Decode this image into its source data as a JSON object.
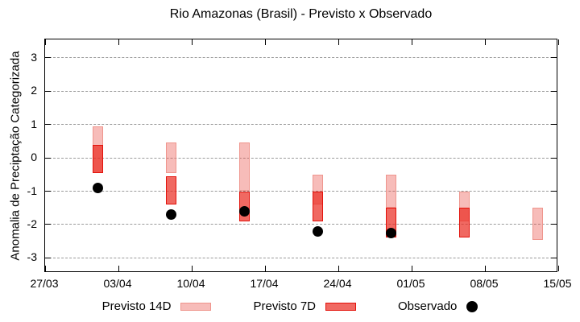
{
  "title": "Rio Amazonas (Brasil) - Previsto x Observado",
  "y_axis": {
    "label": "Anomalia de Preciptação Categorizada",
    "ticks": [
      3,
      2,
      1,
      0,
      -1,
      -2,
      -3
    ],
    "min": -3.45,
    "max": 3.55
  },
  "x_axis": {
    "tick_labels": [
      "27/03",
      "03/04",
      "10/04",
      "17/04",
      "24/04",
      "01/05",
      "08/05",
      "15/05"
    ],
    "tick_days": [
      0,
      7,
      14,
      21,
      28,
      35,
      42,
      49
    ],
    "span_days": 49
  },
  "legend": [
    {
      "label": "Previsto 14D",
      "type": "box"
    },
    {
      "label": "Previsto 7D",
      "type": "box"
    },
    {
      "label": "Observado",
      "type": "dot"
    }
  ],
  "colors": {
    "previsto14_fill": "rgba(235,80,70,0.38)",
    "previsto14_border": "#ef958d",
    "previsto7_fill": "rgba(233,42,32,0.70)",
    "previsto7_border": "#e3120b",
    "observado": "#000000",
    "grid": "#9a9a9a",
    "axis": "#000000"
  },
  "chart_data": {
    "type": "bar",
    "variant": "floating_range_bars_with_scatter",
    "title": "Rio Amazonas (Brasil) - Previsto x Observado",
    "xlabel": "",
    "ylabel": "Anomalia de Preciptação Categorizada",
    "ylim": [
      -3.45,
      3.55
    ],
    "grid": "horizontal-dashed",
    "legend_position": "bottom-center",
    "categories": [
      "01/04",
      "08/04",
      "15/04",
      "22/04",
      "29/04",
      "06/05",
      "13/05"
    ],
    "day_offsets": [
      5,
      12,
      19,
      26,
      33,
      40,
      47
    ],
    "series": [
      {
        "name": "Previsto 14D",
        "kind": "range",
        "ranges": [
          [
            -0.45,
            0.95
          ],
          [
            -0.45,
            0.45
          ],
          [
            -1.0,
            0.45
          ],
          [
            -1.4,
            -0.5
          ],
          [
            -1.5,
            -0.5
          ],
          [
            -1.9,
            -1.0
          ],
          [
            -2.45,
            -1.5
          ]
        ]
      },
      {
        "name": "Previsto 7D",
        "kind": "range",
        "ranges": [
          [
            -0.45,
            0.4
          ],
          [
            -1.4,
            -0.55
          ],
          [
            -1.9,
            -1.0
          ],
          [
            -1.9,
            -1.0
          ],
          [
            -2.4,
            -1.5
          ],
          [
            -2.4,
            -1.5
          ],
          null
        ]
      },
      {
        "name": "Observado",
        "kind": "scatter",
        "values": [
          -0.9,
          -1.7,
          -1.6,
          -2.2,
          -2.25,
          null,
          null
        ]
      }
    ]
  }
}
